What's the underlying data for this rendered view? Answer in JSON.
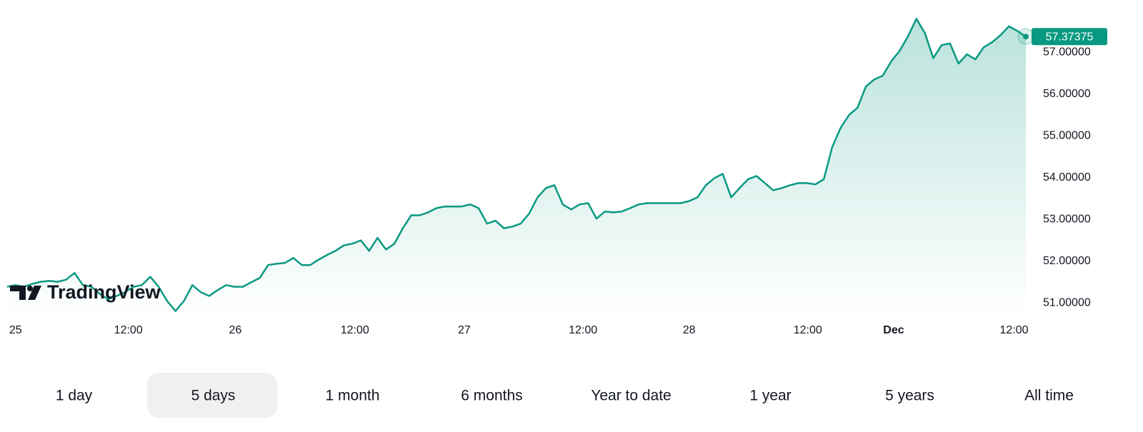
{
  "chart_data": {
    "type": "line",
    "watermark": "TradingView",
    "color": "#089981",
    "values": [
      51.39,
      51.43,
      51.39,
      51.46,
      51.51,
      51.53,
      51.51,
      51.56,
      51.72,
      51.43,
      51.39,
      51.22,
      51.09,
      51.17,
      51.26,
      51.39,
      51.43,
      51.63,
      51.39,
      51.05,
      50.81,
      51.05,
      51.43,
      51.26,
      51.17,
      51.31,
      51.43,
      51.39,
      51.39,
      51.5,
      51.6,
      51.91,
      51.94,
      51.96,
      52.08,
      51.91,
      51.91,
      52.04,
      52.15,
      52.25,
      52.38,
      52.42,
      52.5,
      52.25,
      52.56,
      52.28,
      52.42,
      52.79,
      53.1,
      53.1,
      53.17,
      53.27,
      53.31,
      53.31,
      53.31,
      53.36,
      53.27,
      52.9,
      52.97,
      52.79,
      52.83,
      52.9,
      53.14,
      53.53,
      53.75,
      53.82,
      53.36,
      53.24,
      53.36,
      53.39,
      53.02,
      53.19,
      53.17,
      53.19,
      53.27,
      53.36,
      53.39,
      53.39,
      53.39,
      53.39,
      53.39,
      53.44,
      53.53,
      53.82,
      53.99,
      54.09,
      53.53,
      53.75,
      53.96,
      54.04,
      53.87,
      53.7,
      53.75,
      53.82,
      53.87,
      53.87,
      53.84,
      53.96,
      54.73,
      55.19,
      55.5,
      55.67,
      56.18,
      56.35,
      56.44,
      56.78,
      57.03,
      57.38,
      57.8,
      57.46,
      56.86,
      57.17,
      57.21,
      56.73,
      56.95,
      56.83,
      57.12,
      57.24,
      57.41,
      57.62,
      57.51,
      57.37375
    ],
    "xlim": [
      0,
      121
    ],
    "xticks": [
      {
        "value": 1,
        "label": "25"
      },
      {
        "value": 14.4,
        "label": "12:00"
      },
      {
        "value": 27.1,
        "label": "26"
      },
      {
        "value": 41.3,
        "label": "12:00"
      },
      {
        "value": 54.3,
        "label": "27"
      },
      {
        "value": 68.4,
        "label": "12:00"
      },
      {
        "value": 81,
        "label": "28"
      },
      {
        "value": 95.1,
        "label": "12:00"
      },
      {
        "value": 105.3,
        "label": "Dec"
      },
      {
        "value": 119.6,
        "label": "12:00"
      }
    ],
    "ylim": [
      50.7,
      58.25
    ],
    "yticks": [
      {
        "value": 51,
        "label": "51.00000"
      },
      {
        "value": 52,
        "label": "52.00000"
      },
      {
        "value": 53,
        "label": "53.00000"
      },
      {
        "value": 54,
        "label": "54.00000"
      },
      {
        "value": 55,
        "label": "55.00000"
      },
      {
        "value": 56,
        "label": "56.00000"
      },
      {
        "value": 57,
        "label": "57.00000"
      }
    ]
  },
  "range_buttons": [
    "1 day",
    "5 days",
    "1 month",
    "6 months",
    "Year to date",
    "1 year",
    "5 years",
    "All time"
  ],
  "selected_range": 1
}
